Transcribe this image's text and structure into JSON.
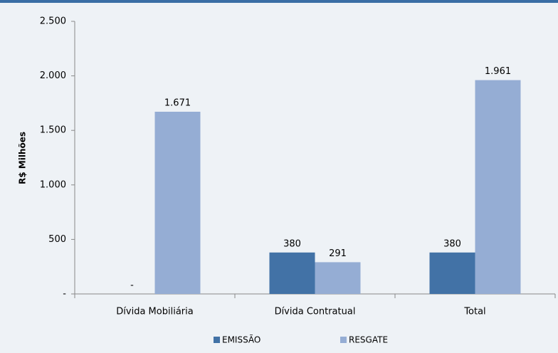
{
  "chart_data": {
    "type": "bar",
    "y_label": "R$ Milhões",
    "categories": [
      "Dívida Mobiliária",
      "Dívida Contratual",
      "Total"
    ],
    "series": [
      {
        "name": "EMISSÃO",
        "color": "#4272a6",
        "values": [
          0,
          380,
          380
        ],
        "value_labels": [
          "-",
          "380",
          "380"
        ]
      },
      {
        "name": "RESGATE",
        "color": "#95add4",
        "values": [
          1671,
          291,
          1961
        ],
        "value_labels": [
          "1.671",
          "291",
          "1.961"
        ]
      }
    ],
    "ylim": [
      0,
      2500
    ],
    "yticks": [
      {
        "value": 0,
        "label": "-"
      },
      500,
      {
        "value": 1000,
        "label": "1.000"
      },
      {
        "value": 1500,
        "label": "1.500"
      },
      {
        "value": 2000,
        "label": "2.000"
      },
      {
        "value": 2500,
        "label": "2.500"
      }
    ],
    "legend": "bottom"
  }
}
